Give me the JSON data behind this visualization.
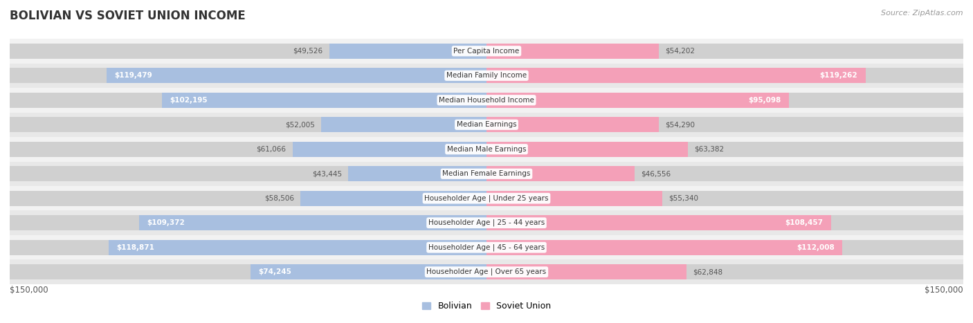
{
  "title": "BOLIVIAN VS SOVIET UNION INCOME",
  "source": "Source: ZipAtlas.com",
  "categories": [
    "Per Capita Income",
    "Median Family Income",
    "Median Household Income",
    "Median Earnings",
    "Median Male Earnings",
    "Median Female Earnings",
    "Householder Age | Under 25 years",
    "Householder Age | 25 - 44 years",
    "Householder Age | 45 - 64 years",
    "Householder Age | Over 65 years"
  ],
  "bolivian": [
    49526,
    119479,
    102195,
    52005,
    61066,
    43445,
    58506,
    109372,
    118871,
    74245
  ],
  "soviet_union": [
    54202,
    119262,
    95098,
    54290,
    63382,
    46556,
    55340,
    108457,
    112008,
    62848
  ],
  "bolivian_labels": [
    "$49,526",
    "$119,479",
    "$102,195",
    "$52,005",
    "$61,066",
    "$43,445",
    "$58,506",
    "$109,372",
    "$118,871",
    "$74,245"
  ],
  "soviet_labels": [
    "$54,202",
    "$119,262",
    "$95,098",
    "$54,290",
    "$63,382",
    "$46,556",
    "$55,340",
    "$108,457",
    "$112,008",
    "$62,848"
  ],
  "max_val": 150000,
  "bolivian_color": "#a8bfe0",
  "soviet_color": "#f4a0b8",
  "row_colors": [
    "#f2f2f2",
    "#e8e8e8"
  ],
  "bar_bg_color": "#d0d0d0",
  "label_inside_color": "white",
  "label_outside_color": "#555555",
  "inside_threshold": 65000,
  "title_color": "#333333",
  "source_color": "#999999",
  "bottom_label_color": "#555555"
}
